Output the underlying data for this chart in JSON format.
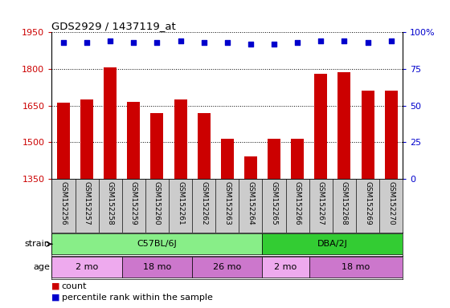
{
  "title": "GDS2929 / 1437119_at",
  "samples": [
    "GSM152256",
    "GSM152257",
    "GSM152258",
    "GSM152259",
    "GSM152260",
    "GSM152261",
    "GSM152262",
    "GSM152263",
    "GSM152264",
    "GSM152265",
    "GSM152266",
    "GSM152267",
    "GSM152268",
    "GSM152269",
    "GSM152270"
  ],
  "counts": [
    1660,
    1675,
    1805,
    1665,
    1620,
    1675,
    1620,
    1515,
    1440,
    1515,
    1515,
    1780,
    1785,
    1710,
    1710
  ],
  "percentiles": [
    93,
    93,
    94,
    93,
    93,
    94,
    93,
    93,
    92,
    92,
    93,
    94,
    94,
    93,
    94
  ],
  "ylim_left": [
    1350,
    1950
  ],
  "ylim_right": [
    0,
    100
  ],
  "yticks_left": [
    1350,
    1500,
    1650,
    1800,
    1950
  ],
  "yticks_right": [
    0,
    25,
    50,
    75,
    100
  ],
  "bar_color": "#cc0000",
  "dot_color": "#0000cc",
  "strain_groups": [
    {
      "label": "C57BL/6J",
      "start": 0,
      "end": 9,
      "color": "#88ee88"
    },
    {
      "label": "DBA/2J",
      "start": 9,
      "end": 15,
      "color": "#33cc33"
    }
  ],
  "age_groups": [
    {
      "label": "2 mo",
      "start": 0,
      "end": 3,
      "color": "#eeaaee"
    },
    {
      "label": "18 mo",
      "start": 3,
      "end": 6,
      "color": "#cc77cc"
    },
    {
      "label": "26 mo",
      "start": 6,
      "end": 9,
      "color": "#cc77cc"
    },
    {
      "label": "2 mo",
      "start": 9,
      "end": 11,
      "color": "#eeaaee"
    },
    {
      "label": "18 mo",
      "start": 11,
      "end": 15,
      "color": "#cc77cc"
    }
  ],
  "xlabels_bg": "#cccccc",
  "left_color": "#cc0000",
  "right_color": "#0000cc",
  "fig_bg": "#ffffff"
}
